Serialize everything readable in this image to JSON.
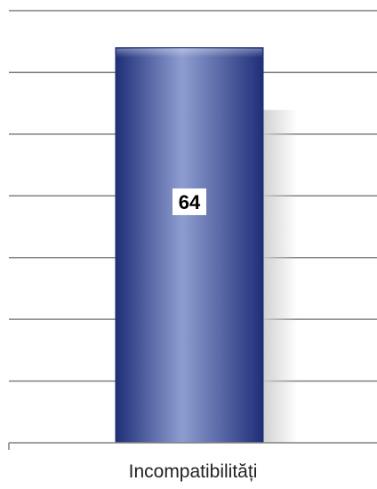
{
  "chart_data": {
    "type": "bar",
    "categories": [
      "Incompatibilități"
    ],
    "values": [
      64
    ],
    "data_labels": [
      "64"
    ],
    "ylim": [
      0,
      70
    ],
    "gridlines_at": [
      10,
      20,
      30,
      40,
      50,
      60,
      70
    ],
    "grid": true,
    "legend": "none",
    "colors": {
      "bar_dark": "#1f2e78",
      "bar_light": "#8e9dd0",
      "grid": "#808080",
      "axis": "#808080",
      "shadow": "#cccccc",
      "label_box": "#ffffff",
      "label_text": "#000000"
    }
  }
}
